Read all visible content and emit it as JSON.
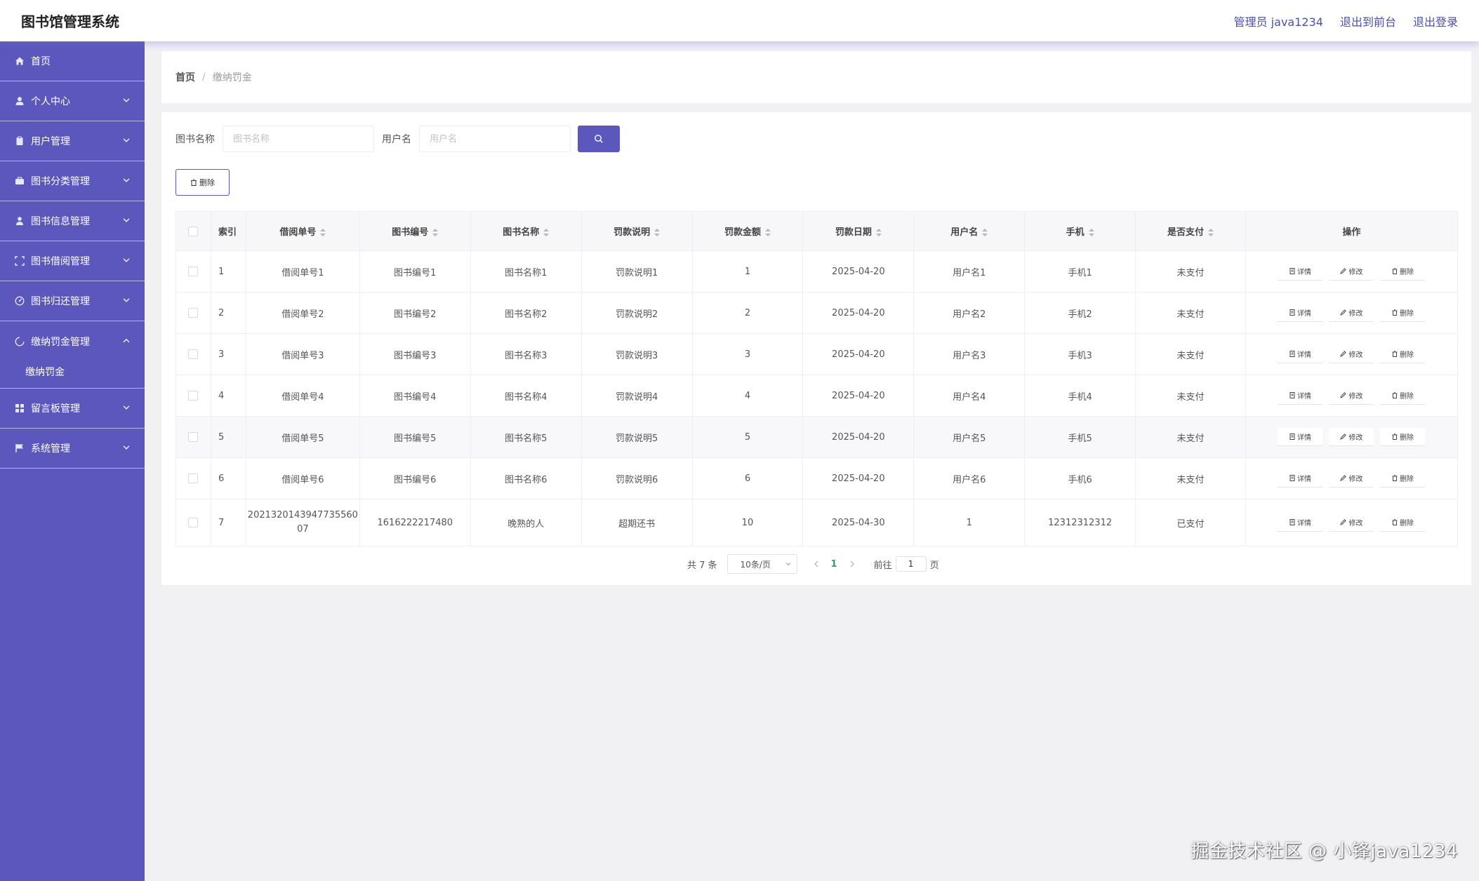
{
  "header": {
    "app_title": "图书馆管理系统",
    "admin_label": "管理员 java1234",
    "to_front_label": "退出到前台",
    "logout_label": "退出登录"
  },
  "sidebar": {
    "items": [
      {
        "label": "首页",
        "icon": "home-icon"
      },
      {
        "label": "个人中心",
        "icon": "user-icon"
      },
      {
        "label": "用户管理",
        "icon": "clipboard-icon"
      },
      {
        "label": "图书分类管理",
        "icon": "briefcase-icon"
      },
      {
        "label": "图书信息管理",
        "icon": "person-icon"
      },
      {
        "label": "图书借阅管理",
        "icon": "fullscreen-icon"
      },
      {
        "label": "图书归还管理",
        "icon": "dashboard-icon"
      },
      {
        "label": "缴纳罚金管理",
        "icon": "spinner-icon"
      },
      {
        "label": "留言板管理",
        "icon": "grid-icon"
      },
      {
        "label": "系统管理",
        "icon": "flag-icon"
      }
    ],
    "submenu": "缴纳罚金"
  },
  "breadcrumb": {
    "home": "首页",
    "separator": "/",
    "current": "缴纳罚金"
  },
  "search": {
    "book_name_label": "图书名称",
    "book_name_placeholder": "图书名称",
    "username_label": "用户名",
    "username_placeholder": "用户名"
  },
  "toolbar": {
    "delete_label": "删除"
  },
  "table": {
    "headers": [
      "索引",
      "借阅单号",
      "图书编号",
      "图书名称",
      "罚款说明",
      "罚款金额",
      "罚款日期",
      "用户名",
      "手机",
      "是否支付",
      "操作"
    ],
    "rows": [
      {
        "index": "1",
        "borrow_no": "借阅单号1",
        "book_no": "图书编号1",
        "book_name": "图书名称1",
        "note": "罚款说明1",
        "amount": "1",
        "date": "2025-04-20",
        "username": "用户名1",
        "phone": "手机1",
        "paid": "未支付"
      },
      {
        "index": "2",
        "borrow_no": "借阅单号2",
        "book_no": "图书编号2",
        "book_name": "图书名称2",
        "note": "罚款说明2",
        "amount": "2",
        "date": "2025-04-20",
        "username": "用户名2",
        "phone": "手机2",
        "paid": "未支付"
      },
      {
        "index": "3",
        "borrow_no": "借阅单号3",
        "book_no": "图书编号3",
        "book_name": "图书名称3",
        "note": "罚款说明3",
        "amount": "3",
        "date": "2025-04-20",
        "username": "用户名3",
        "phone": "手机3",
        "paid": "未支付"
      },
      {
        "index": "4",
        "borrow_no": "借阅单号4",
        "book_no": "图书编号4",
        "book_name": "图书名称4",
        "note": "罚款说明4",
        "amount": "4",
        "date": "2025-04-20",
        "username": "用户名4",
        "phone": "手机4",
        "paid": "未支付"
      },
      {
        "index": "5",
        "borrow_no": "借阅单号5",
        "book_no": "图书编号5",
        "book_name": "图书名称5",
        "note": "罚款说明5",
        "amount": "5",
        "date": "2025-04-20",
        "username": "用户名5",
        "phone": "手机5",
        "paid": "未支付"
      },
      {
        "index": "6",
        "borrow_no": "借阅单号6",
        "book_no": "图书编号6",
        "book_name": "图书名称6",
        "note": "罚款说明6",
        "amount": "6",
        "date": "2025-04-20",
        "username": "用户名6",
        "phone": "手机6",
        "paid": "未支付"
      },
      {
        "index": "7",
        "borrow_no": "202132014394773556007",
        "book_no": "1616222217480",
        "book_name": "晚熟的人",
        "note": "超期还书",
        "amount": "10",
        "date": "2025-04-30",
        "username": "1",
        "phone": "12312312312",
        "paid": "已支付"
      }
    ],
    "actions": {
      "detail": "详情",
      "edit": "修改",
      "delete": "删除"
    }
  },
  "pagination": {
    "total_text": "共 7 条",
    "page_size": "10条/页",
    "current_page": "1",
    "goto_label": "前往",
    "goto_value": "1",
    "page_suffix": "页"
  },
  "watermark": "掘金技术社区 @ 小锋java1234",
  "colors": {
    "primary": "#5b57bc",
    "pager_active": "#2aa563"
  }
}
